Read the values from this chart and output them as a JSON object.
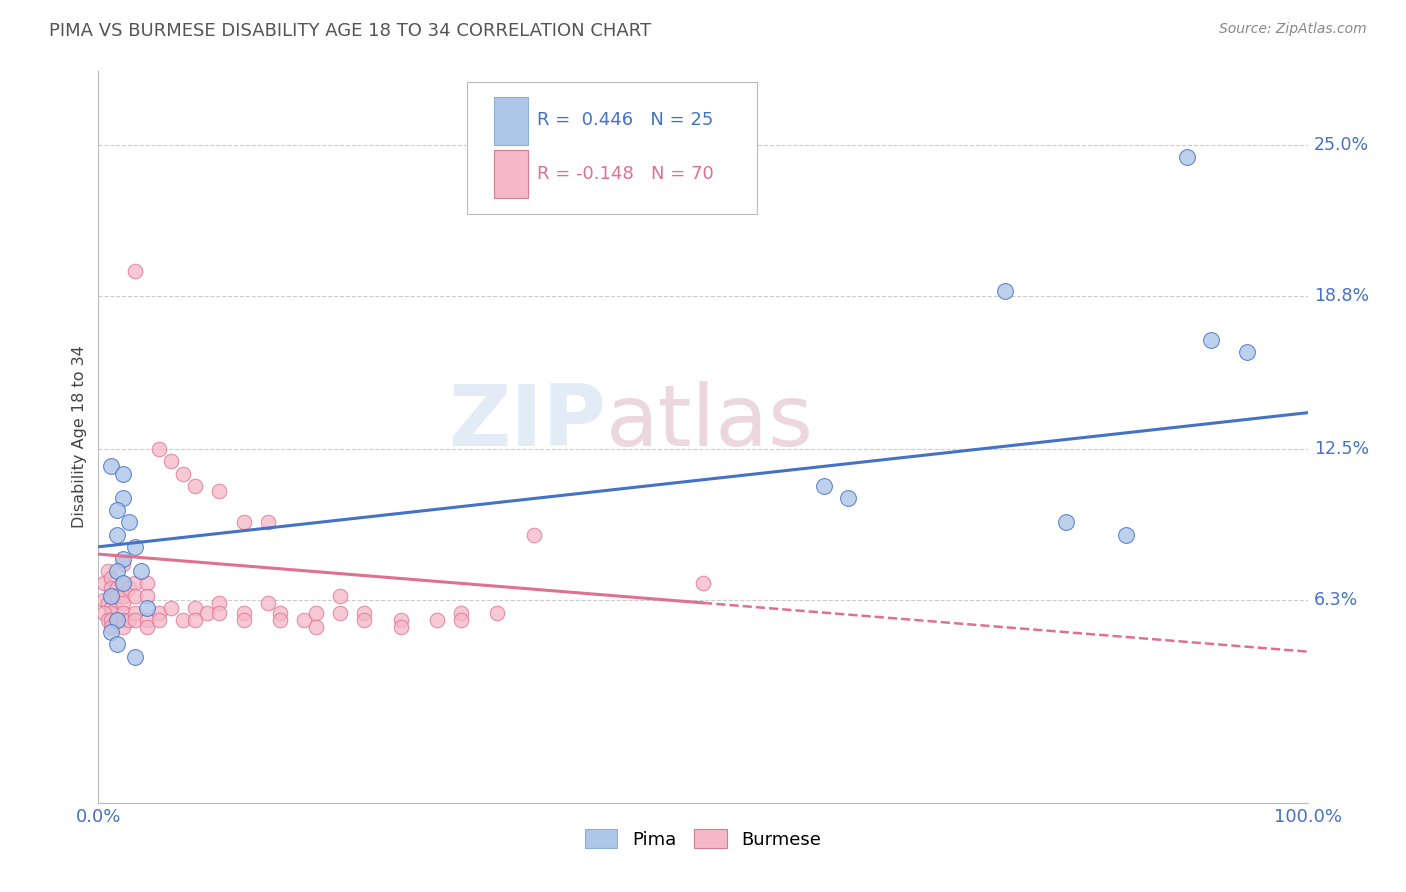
{
  "title": "PIMA VS BURMESE DISABILITY AGE 18 TO 34 CORRELATION CHART",
  "source": "Source: ZipAtlas.com",
  "ylabel": "Disability Age 18 to 34",
  "yticks": [
    "25.0%",
    "18.8%",
    "12.5%",
    "6.3%"
  ],
  "ytick_vals": [
    25.0,
    18.8,
    12.5,
    6.3
  ],
  "xlim": [
    0.0,
    100.0
  ],
  "ylim": [
    -2.0,
    28.0
  ],
  "pima_R": 0.446,
  "pima_N": 25,
  "burmese_R": -0.148,
  "burmese_N": 70,
  "legend_label_pima": "Pima",
  "legend_label_burmese": "Burmese",
  "pima_color": "#aec6e8",
  "pima_line_color": "#4472c4",
  "burmese_color": "#f4b8c8",
  "burmese_line_color": "#e07090",
  "background_color": "#ffffff",
  "grid_color": "#cccccc",
  "watermark_zip": "ZIP",
  "watermark_atlas": "atlas",
  "pima_scatter": [
    [
      1.0,
      11.8
    ],
    [
      2.0,
      11.5
    ],
    [
      2.0,
      10.5
    ],
    [
      1.5,
      10.0
    ],
    [
      2.5,
      9.5
    ],
    [
      1.5,
      9.0
    ],
    [
      3.0,
      8.5
    ],
    [
      2.0,
      8.0
    ],
    [
      1.5,
      7.5
    ],
    [
      3.5,
      7.5
    ],
    [
      2.0,
      7.0
    ],
    [
      1.0,
      6.5
    ],
    [
      4.0,
      6.0
    ],
    [
      1.5,
      5.5
    ],
    [
      1.0,
      5.0
    ],
    [
      1.5,
      4.5
    ],
    [
      3.0,
      4.0
    ],
    [
      75.0,
      19.0
    ],
    [
      60.0,
      11.0
    ],
    [
      62.0,
      10.5
    ],
    [
      80.0,
      9.5
    ],
    [
      85.0,
      9.0
    ],
    [
      90.0,
      24.5
    ],
    [
      92.0,
      17.0
    ],
    [
      95.0,
      16.5
    ]
  ],
  "burmese_scatter": [
    [
      0.5,
      7.0
    ],
    [
      0.8,
      7.5
    ],
    [
      1.0,
      7.2
    ],
    [
      1.0,
      6.8
    ],
    [
      1.2,
      6.5
    ],
    [
      0.5,
      6.3
    ],
    [
      0.8,
      6.2
    ],
    [
      1.0,
      6.0
    ],
    [
      1.0,
      5.8
    ],
    [
      1.5,
      6.8
    ],
    [
      1.5,
      6.5
    ],
    [
      2.0,
      7.8
    ],
    [
      2.0,
      7.0
    ],
    [
      2.0,
      6.5
    ],
    [
      2.0,
      6.2
    ],
    [
      2.5,
      6.8
    ],
    [
      3.0,
      7.0
    ],
    [
      3.0,
      6.5
    ],
    [
      4.0,
      7.0
    ],
    [
      4.0,
      6.5
    ],
    [
      0.5,
      5.8
    ],
    [
      0.8,
      5.5
    ],
    [
      1.0,
      5.5
    ],
    [
      1.0,
      5.2
    ],
    [
      1.5,
      5.5
    ],
    [
      2.0,
      5.8
    ],
    [
      2.0,
      5.5
    ],
    [
      2.0,
      5.2
    ],
    [
      2.5,
      5.5
    ],
    [
      3.0,
      5.8
    ],
    [
      3.0,
      5.5
    ],
    [
      4.0,
      5.5
    ],
    [
      4.0,
      5.2
    ],
    [
      5.0,
      5.8
    ],
    [
      5.0,
      5.5
    ],
    [
      6.0,
      6.0
    ],
    [
      7.0,
      5.5
    ],
    [
      8.0,
      6.0
    ],
    [
      8.0,
      5.5
    ],
    [
      9.0,
      5.8
    ],
    [
      10.0,
      6.2
    ],
    [
      10.0,
      5.8
    ],
    [
      12.0,
      5.8
    ],
    [
      12.0,
      5.5
    ],
    [
      14.0,
      6.2
    ],
    [
      15.0,
      5.8
    ],
    [
      15.0,
      5.5
    ],
    [
      17.0,
      5.5
    ],
    [
      18.0,
      5.8
    ],
    [
      18.0,
      5.2
    ],
    [
      20.0,
      6.5
    ],
    [
      20.0,
      5.8
    ],
    [
      22.0,
      5.8
    ],
    [
      22.0,
      5.5
    ],
    [
      25.0,
      5.5
    ],
    [
      25.0,
      5.2
    ],
    [
      28.0,
      5.5
    ],
    [
      30.0,
      5.8
    ],
    [
      30.0,
      5.5
    ],
    [
      33.0,
      5.8
    ],
    [
      3.0,
      19.8
    ],
    [
      5.0,
      12.5
    ],
    [
      6.0,
      12.0
    ],
    [
      7.0,
      11.5
    ],
    [
      8.0,
      11.0
    ],
    [
      10.0,
      10.8
    ],
    [
      12.0,
      9.5
    ],
    [
      14.0,
      9.5
    ],
    [
      36.0,
      9.0
    ],
    [
      50.0,
      7.0
    ]
  ],
  "burmese_line_solid_end": 50.0,
  "pima_line_intercept": 8.5,
  "pima_line_slope": 0.055,
  "burmese_line_intercept": 8.2,
  "burmese_line_slope": -0.04
}
